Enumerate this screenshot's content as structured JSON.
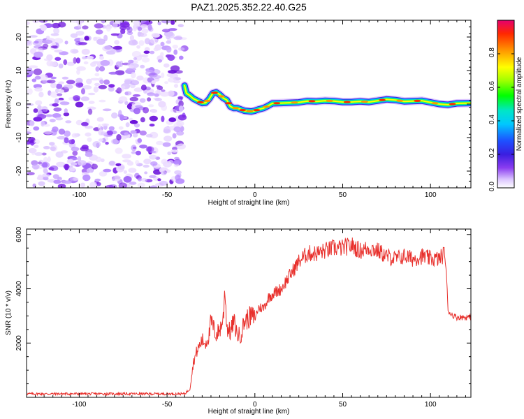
{
  "title": "PAZ1.2025.352.22.40.G25",
  "chart_data": [
    {
      "type": "heatmap",
      "xlabel": "Height of straight line (km)",
      "ylabel": "Frequency (Hz)",
      "xlim": [
        -130,
        123
      ],
      "ylim": [
        -25,
        25
      ],
      "xticks": [
        -100,
        -50,
        0,
        50,
        100
      ],
      "yticks": [
        -20,
        -10,
        0,
        10,
        20
      ],
      "noise_region_xmax": -40,
      "trace": {
        "x": [
          -40,
          -39,
          -37,
          -35,
          -32,
          -30,
          -28,
          -26,
          -24,
          -22,
          -20,
          -18,
          -16,
          -14,
          -12,
          -10,
          -8,
          -6,
          -4,
          -2,
          0,
          2,
          5,
          8,
          10,
          15,
          20,
          25,
          30,
          35,
          40,
          45,
          50,
          55,
          60,
          65,
          70,
          75,
          80,
          85,
          90,
          95,
          100,
          105,
          110,
          115,
          123
        ],
        "y": [
          5.5,
          3.2,
          2.5,
          1.6,
          0.8,
          0.3,
          0.4,
          1.5,
          3.2,
          3.5,
          2.8,
          1.8,
          1.2,
          -0.7,
          -1.2,
          -1.2,
          -1.6,
          -2.0,
          -2.1,
          -2.2,
          -2.0,
          -1.6,
          -1.2,
          -0.4,
          0.2,
          0.3,
          0.4,
          0.5,
          0.9,
          0.8,
          1.0,
          0.9,
          0.6,
          0.6,
          0.8,
          0.6,
          1.0,
          1.4,
          1.2,
          0.8,
          0.9,
          1.0,
          0.5,
          0.0,
          -0.2,
          0.2,
          0.3
        ]
      },
      "colorbar": {
        "label": "Normalized spectral amplitude",
        "range": [
          0,
          1
        ],
        "ticks": [
          "0.0",
          "0.2",
          "0.4",
          "0.6",
          "0.8"
        ]
      }
    },
    {
      "type": "line",
      "xlabel": "Height of straight line (km)",
      "ylabel": "SNR (10 * v/v)",
      "xlim": [
        -130,
        123
      ],
      "ylim": [
        0,
        6200
      ],
      "xticks": [
        -100,
        -50,
        0,
        50,
        100
      ],
      "yticks": [
        2000,
        4000,
        6000
      ],
      "series": [
        {
          "name": "SNR",
          "color": "#e8302c",
          "x": [
            -130,
            -40,
            -37,
            -35,
            -33,
            -30,
            -28,
            -26,
            -25,
            -22,
            -20,
            -18,
            -17,
            -16,
            -14,
            -12,
            -10,
            -8,
            -6,
            -4,
            -2,
            0,
            2,
            5,
            8,
            10,
            15,
            20,
            25,
            30,
            35,
            40,
            45,
            50,
            55,
            60,
            65,
            70,
            75,
            80,
            85,
            90,
            95,
            100,
            105,
            108,
            109,
            110,
            112,
            115,
            123
          ],
          "y": [
            130,
            130,
            300,
            1300,
            1700,
            2100,
            2000,
            2300,
            2800,
            2300,
            2500,
            2900,
            4100,
            2600,
            2400,
            2800,
            2300,
            2300,
            2800,
            2900,
            3000,
            2900,
            3300,
            3300,
            3700,
            3800,
            4000,
            4500,
            5000,
            5300,
            5300,
            5400,
            5500,
            5500,
            5600,
            5400,
            5500,
            5400,
            5200,
            5100,
            5200,
            5100,
            5200,
            5100,
            5100,
            5300,
            4600,
            3200,
            3050,
            2950,
            2950
          ]
        }
      ]
    }
  ]
}
